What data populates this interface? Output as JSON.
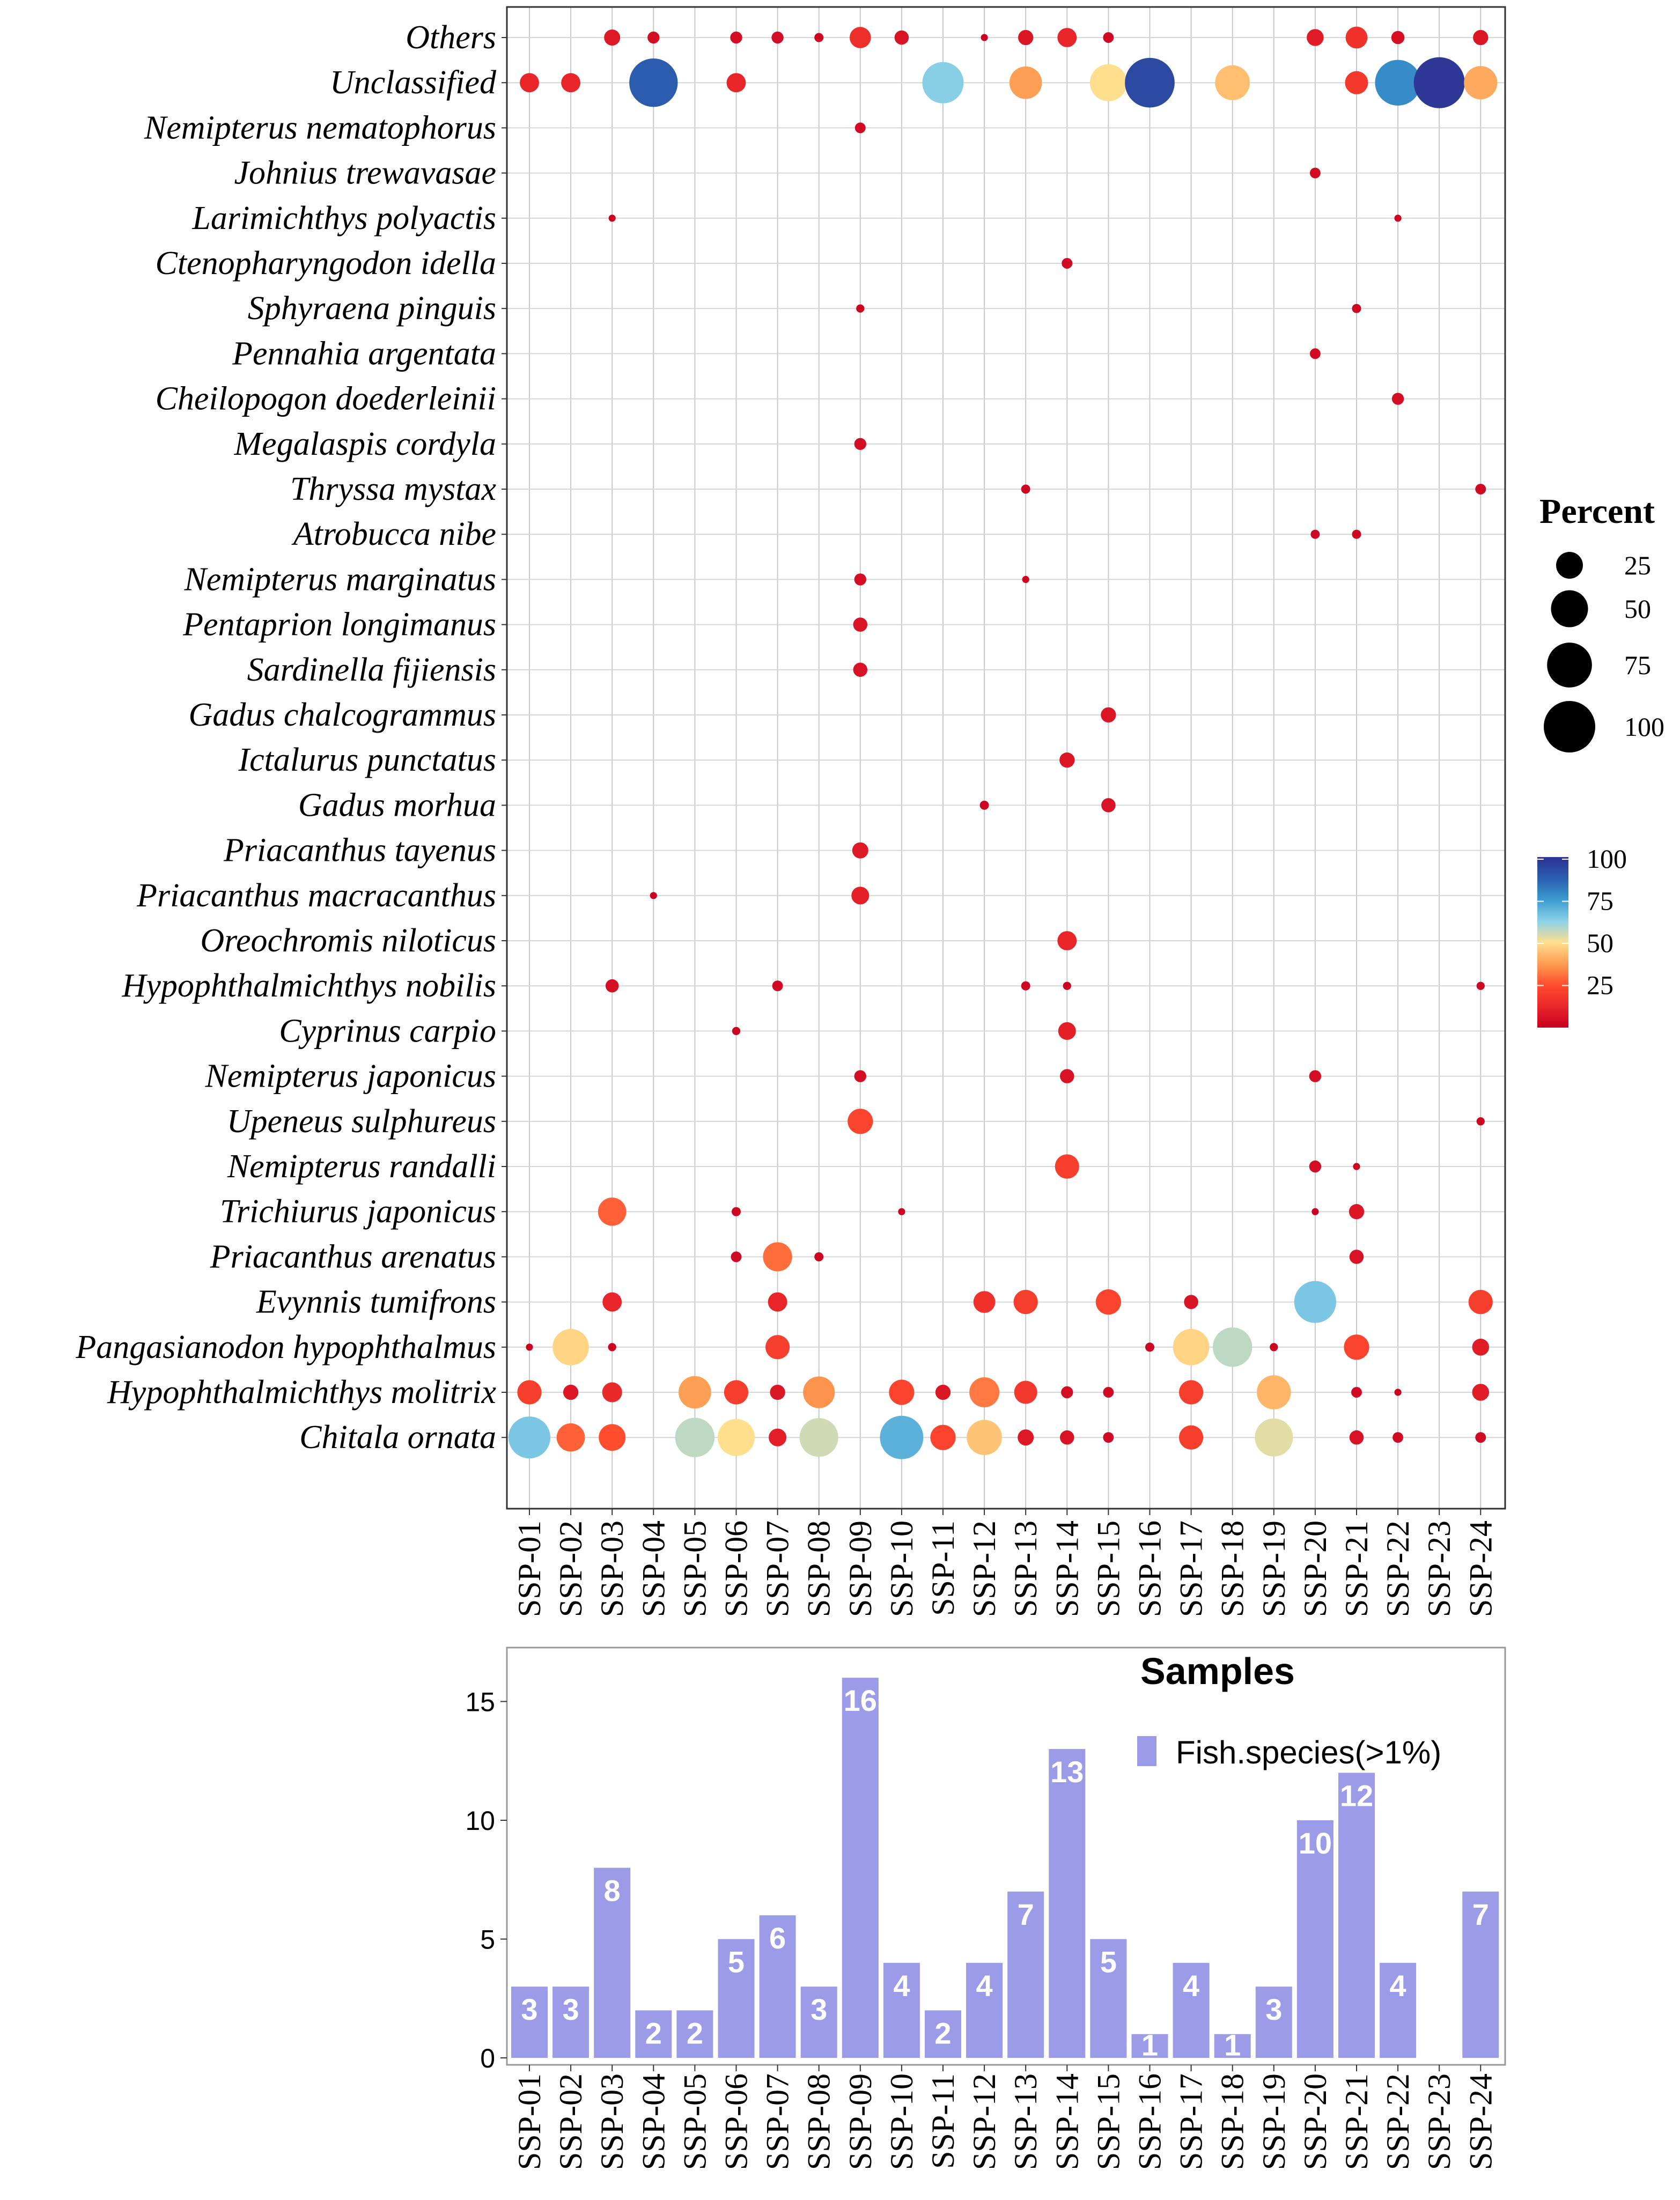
{
  "chart_data": [
    {
      "type": "scatter",
      "subtype": "bubble",
      "samples": [
        "SSP-01",
        "SSP-02",
        "SSP-03",
        "SSP-04",
        "SSP-05",
        "SSP-06",
        "SSP-07",
        "SSP-08",
        "SSP-09",
        "SSP-10",
        "SSP-11",
        "SSP-12",
        "SSP-13",
        "SSP-14",
        "SSP-15",
        "SSP-16",
        "SSP-17",
        "SSP-18",
        "SSP-19",
        "SSP-20",
        "SSP-21",
        "SSP-22",
        "SSP-23",
        "SSP-24"
      ],
      "species": [
        {
          "name": "Others",
          "values": {
            "SSP-03": 8,
            "SSP-04": 4,
            "SSP-06": 4,
            "SSP-07": 4,
            "SSP-08": 2,
            "SSP-09": 15,
            "SSP-10": 6,
            "SSP-12": 1,
            "SSP-13": 7,
            "SSP-14": 12,
            "SSP-15": 3,
            "SSP-20": 9,
            "SSP-21": 16,
            "SSP-22": 5,
            "SSP-24": 7
          }
        },
        {
          "name": "Unclassified",
          "values": {
            "SSP-01": 12,
            "SSP-02": 12,
            "SSP-04": 88,
            "SSP-06": 12,
            "SSP-11": 63,
            "SSP-13": 38,
            "SSP-15": 50,
            "SSP-16": 93,
            "SSP-18": 44,
            "SSP-21": 18,
            "SSP-22": 78,
            "SSP-23": 98,
            "SSP-24": 40
          }
        },
        {
          "name": "Nemipterus nematophorus",
          "values": {
            "SSP-09": 3
          }
        },
        {
          "name": "Johnius trewavasae",
          "values": {
            "SSP-20": 3
          }
        },
        {
          "name": "Larimichthys polyactis",
          "values": {
            "SSP-03": 1,
            "SSP-22": 1
          }
        },
        {
          "name": "Ctenopharyngodon idella",
          "values": {
            "SSP-14": 3
          }
        },
        {
          "name": "Sphyraena pinguis",
          "values": {
            "SSP-09": 1.5,
            "SSP-21": 2
          }
        },
        {
          "name": "Pennahia argentata",
          "values": {
            "SSP-20": 3
          }
        },
        {
          "name": "Cheilopogon doederleinii",
          "values": {
            "SSP-22": 4
          }
        },
        {
          "name": "Megalaspis cordyla",
          "values": {
            "SSP-09": 4
          }
        },
        {
          "name": "Thryssa mystax",
          "values": {
            "SSP-13": 2,
            "SSP-24": 3
          }
        },
        {
          "name": "Atrobucca nibe",
          "values": {
            "SSP-20": 2,
            "SSP-21": 2
          }
        },
        {
          "name": "Nemipterus marginatus",
          "values": {
            "SSP-09": 4,
            "SSP-13": 1
          }
        },
        {
          "name": "Pentaprion longimanus",
          "values": {
            "SSP-09": 6
          }
        },
        {
          "name": "Sardinella fijiensis",
          "values": {
            "SSP-09": 6
          }
        },
        {
          "name": "Gadus chalcogrammus",
          "values": {
            "SSP-15": 7
          }
        },
        {
          "name": "Ictalurus punctatus",
          "values": {
            "SSP-14": 7
          }
        },
        {
          "name": "Gadus morhua",
          "values": {
            "SSP-12": 2,
            "SSP-15": 6
          }
        },
        {
          "name": "Priacanthus tayenus",
          "values": {
            "SSP-09": 8
          }
        },
        {
          "name": "Priacanthus macracanthus",
          "values": {
            "SSP-04": 1,
            "SSP-09": 10
          }
        },
        {
          "name": "Oreochromis niloticus",
          "values": {
            "SSP-14": 12
          }
        },
        {
          "name": "Hypophthalmichthys nobilis",
          "values": {
            "SSP-03": 5,
            "SSP-07": 3,
            "SSP-13": 2,
            "SSP-14": 1.5,
            "SSP-24": 1.5
          }
        },
        {
          "name": "Cyprinus carpio",
          "values": {
            "SSP-06": 1.5,
            "SSP-14": 10
          }
        },
        {
          "name": "Nemipterus japonicus",
          "values": {
            "SSP-09": 4,
            "SSP-14": 6,
            "SSP-20": 4
          }
        },
        {
          "name": "Upeneus sulphureus",
          "values": {
            "SSP-09": 22,
            "SSP-24": 1.5
          }
        },
        {
          "name": "Nemipterus randalli",
          "values": {
            "SSP-14": 20,
            "SSP-20": 4,
            "SSP-21": 1
          }
        },
        {
          "name": "Trichiurus japonicus",
          "values": {
            "SSP-03": 28,
            "SSP-06": 2,
            "SSP-10": 1,
            "SSP-20": 1,
            "SSP-21": 7
          }
        },
        {
          "name": "Priacanthus arenatus",
          "values": {
            "SSP-06": 3,
            "SSP-07": 30,
            "SSP-08": 2,
            "SSP-21": 6
          }
        },
        {
          "name": "Evynnis tumifrons",
          "values": {
            "SSP-03": 12,
            "SSP-07": 12,
            "SSP-12": 16,
            "SSP-13": 20,
            "SSP-15": 22,
            "SSP-17": 6,
            "SSP-20": 65,
            "SSP-24": 20
          }
        },
        {
          "name": "Pangasianodon hypophthalmus",
          "values": {
            "SSP-01": 1,
            "SSP-02": 48,
            "SSP-03": 1.5,
            "SSP-07": 20,
            "SSP-16": 2,
            "SSP-17": 48,
            "SSP-18": 57,
            "SSP-19": 1.5,
            "SSP-21": 22,
            "SSP-24": 9
          }
        },
        {
          "name": "Hypophthalmichthys molitrix",
          "values": {
            "SSP-01": 20,
            "SSP-02": 7,
            "SSP-03": 13,
            "SSP-05": 38,
            "SSP-06": 20,
            "SSP-07": 7,
            "SSP-08": 36,
            "SSP-10": 22,
            "SSP-11": 7,
            "SSP-12": 32,
            "SSP-13": 18,
            "SSP-14": 4,
            "SSP-15": 3,
            "SSP-17": 20,
            "SSP-19": 42,
            "SSP-21": 3,
            "SSP-22": 1,
            "SSP-24": 9
          }
        },
        {
          "name": "Chitala ornata",
          "values": {
            "SSP-01": 65,
            "SSP-02": 28,
            "SSP-03": 25,
            "SSP-05": 57,
            "SSP-06": 50,
            "SSP-07": 10,
            "SSP-08": 55,
            "SSP-10": 70,
            "SSP-11": 22,
            "SSP-12": 45,
            "SSP-13": 8,
            "SSP-14": 6,
            "SSP-15": 3,
            "SSP-17": 20,
            "SSP-19": 53,
            "SSP-21": 6,
            "SSP-22": 3,
            "SSP-24": 3
          }
        }
      ],
      "size_legend": {
        "title": "Percent",
        "labels": [
          "25",
          "50",
          "75",
          "100"
        ],
        "values": [
          25,
          50,
          75,
          100
        ]
      },
      "color_legend": {
        "labels": [
          "100",
          "75",
          "50",
          "25"
        ],
        "values": [
          100,
          75,
          50,
          25
        ],
        "range": [
          0,
          100
        ],
        "stops": [
          [
            0,
            "#C8001F"
          ],
          [
            12,
            "#E8262A"
          ],
          [
            25,
            "#FF4D2E"
          ],
          [
            37,
            "#FD9A50"
          ],
          [
            50,
            "#FEDF8E"
          ],
          [
            62,
            "#8FD3E8"
          ],
          [
            75,
            "#3A9BD0"
          ],
          [
            87,
            "#2B60B0"
          ],
          [
            100,
            "#2E3192"
          ]
        ]
      },
      "grid": true
    },
    {
      "type": "bar",
      "title": "Samples",
      "legend": {
        "label": "Fish.species(>1%)",
        "placement": "top-right"
      },
      "categories": [
        "SSP-01",
        "SSP-02",
        "SSP-03",
        "SSP-04",
        "SSP-05",
        "SSP-06",
        "SSP-07",
        "SSP-08",
        "SSP-09",
        "SSP-10",
        "SSP-11",
        "SSP-12",
        "SSP-13",
        "SSP-14",
        "SSP-15",
        "SSP-16",
        "SSP-17",
        "SSP-18",
        "SSP-19",
        "SSP-20",
        "SSP-21",
        "SSP-22",
        "SSP-23",
        "SSP-24"
      ],
      "values": [
        3,
        3,
        8,
        2,
        2,
        5,
        6,
        3,
        16,
        4,
        2,
        4,
        7,
        13,
        5,
        1,
        4,
        1,
        3,
        10,
        12,
        4,
        0,
        7
      ],
      "yticks": [
        "0",
        "5",
        "10",
        "15"
      ],
      "ylim": [
        0,
        17.2
      ],
      "color": "#9B9BE8",
      "xlabel": "",
      "ylabel": ""
    }
  ]
}
